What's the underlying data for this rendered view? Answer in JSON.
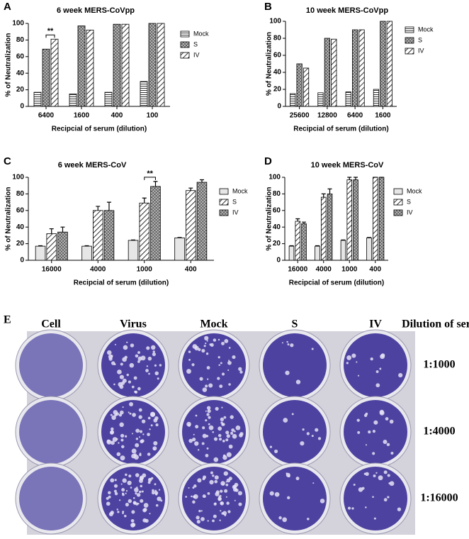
{
  "chart_data": [
    {
      "type": "bar",
      "panel": "A",
      "title": "6 week  MERS-CoVpp",
      "xlabel": "Recipcial of serum (dilution)",
      "ylabel": "% of Neutralization",
      "categories": [
        "6400",
        "1600",
        "400",
        "100"
      ],
      "series": [
        {
          "name": "Mock",
          "color": "#ffffff",
          "pattern": "hlines",
          "values": [
            17,
            15,
            17,
            30
          ]
        },
        {
          "name": "S",
          "color": "#ffffff",
          "pattern": "cross",
          "values": [
            69,
            97,
            99,
            100
          ]
        },
        {
          "name": "IV",
          "color": "#ffffff",
          "pattern": "diag",
          "values": [
            81,
            92,
            99,
            100
          ]
        }
      ],
      "ylim": [
        0,
        100
      ],
      "yticks": [
        0,
        20,
        40,
        60,
        80,
        100
      ],
      "annotation": {
        "text": "**",
        "category": "6400"
      }
    },
    {
      "type": "bar",
      "panel": "B",
      "title": "10 week  MERS-CoVpp",
      "xlabel": "Recipcial of serum (dilution)",
      "ylabel": "% of Neutralization",
      "categories": [
        "25600",
        "12800",
        "6400",
        "1600"
      ],
      "series": [
        {
          "name": "Mock",
          "color": "#ffffff",
          "pattern": "hlines",
          "values": [
            15,
            16,
            17,
            20
          ]
        },
        {
          "name": "S",
          "color": "#ffffff",
          "pattern": "cross",
          "values": [
            50,
            80,
            90,
            100
          ]
        },
        {
          "name": "IV",
          "color": "#ffffff",
          "pattern": "diag",
          "values": [
            45,
            79,
            90,
            100
          ]
        }
      ],
      "ylim": [
        0,
        100
      ],
      "yticks": [
        0,
        20,
        40,
        60,
        80,
        100
      ]
    },
    {
      "type": "bar",
      "panel": "C",
      "title": "6 week  MERS-CoV",
      "xlabel": "Recipcial of serum (dilution)",
      "ylabel": "% of Neutralization",
      "categories": [
        "16000",
        "4000",
        "1000",
        "400"
      ],
      "series": [
        {
          "name": "Mock",
          "color": "#e6e6e6",
          "pattern": "solid",
          "values": [
            17,
            17,
            24,
            27
          ],
          "errors": [
            0.5,
            0.5,
            0.5,
            0.5
          ]
        },
        {
          "name": "S",
          "color": "#ffffff",
          "pattern": "diag",
          "values": [
            32,
            60,
            69,
            84
          ],
          "errors": [
            6,
            5,
            6,
            3
          ]
        },
        {
          "name": "IV",
          "color": "#ffffff",
          "pattern": "cross",
          "values": [
            34,
            60,
            89,
            94
          ],
          "errors": [
            6,
            10,
            6,
            3
          ]
        }
      ],
      "ylim": [
        0,
        100
      ],
      "yticks": [
        0,
        20,
        40,
        60,
        80,
        100
      ],
      "annotation": {
        "text": "**",
        "category": "1000"
      }
    },
    {
      "type": "bar",
      "panel": "D",
      "title": "10 week  MERS-CoV",
      "xlabel": "Recipcial of serum (dilution)",
      "ylabel": "% of Neutralization",
      "categories": [
        "16000",
        "4000",
        "1000",
        "400"
      ],
      "series": [
        {
          "name": "Mock",
          "color": "#e6e6e6",
          "pattern": "solid",
          "values": [
            17,
            17,
            24,
            27
          ],
          "errors": [
            0.5,
            0.5,
            0.5,
            0.5
          ]
        },
        {
          "name": "S",
          "color": "#ffffff",
          "pattern": "diag",
          "values": [
            47,
            76,
            97,
            100
          ],
          "errors": [
            3,
            4,
            3,
            0
          ]
        },
        {
          "name": "IV",
          "color": "#ffffff",
          "pattern": "cross",
          "values": [
            44,
            80,
            97,
            100
          ],
          "errors": [
            2,
            6,
            3,
            0
          ]
        }
      ],
      "ylim": [
        0,
        100
      ],
      "yticks": [
        0,
        20,
        40,
        60,
        80,
        100
      ]
    }
  ],
  "plate": {
    "panel": "E",
    "columns": [
      "Cell",
      "Virus",
      "Mock",
      "S",
      "IV"
    ],
    "row_title": "Dilution of sera",
    "rows": [
      "1:1000",
      "1:4000",
      "1:16000"
    ]
  }
}
